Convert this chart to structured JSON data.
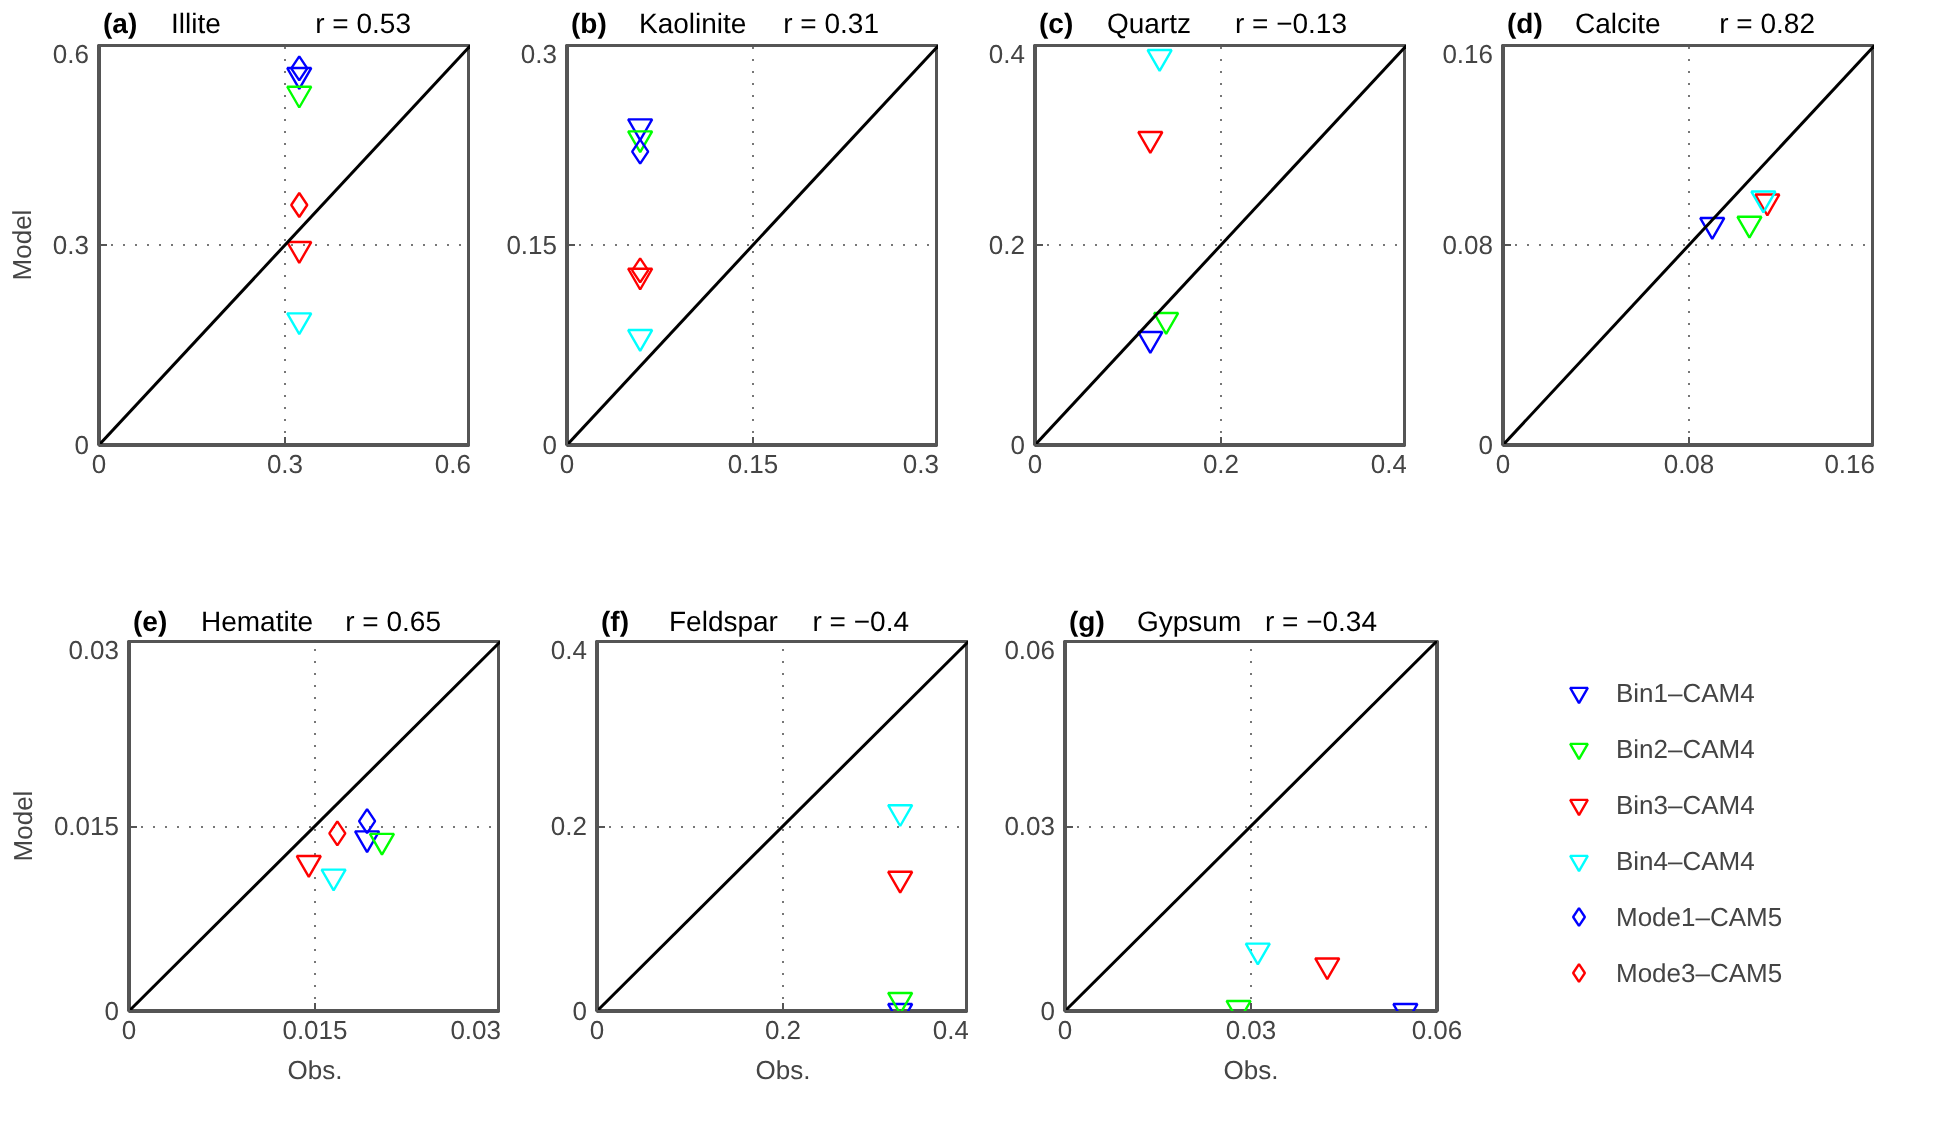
{
  "chart_data": [
    {
      "type": "scatter",
      "title": "Illite",
      "annotations": [
        "(a)",
        "r = 0.53"
      ],
      "ylabel": "Model",
      "xlim": [
        0,
        0.6
      ],
      "ylim": [
        0,
        0.6
      ],
      "xticks": [
        0,
        0.3,
        0.6
      ],
      "yticks": [
        0,
        0.3,
        0.6
      ],
      "grid": true,
      "series": [
        {
          "color": "#0000ff",
          "marker": "triangle",
          "x": [
            0.323
          ],
          "values": [
            0.555
          ]
        },
        {
          "color": "#00ff00",
          "marker": "triangle",
          "x": [
            0.323
          ],
          "values": [
            0.527
          ]
        },
        {
          "color": "#ff0000",
          "marker": "triangle",
          "x": [
            0.323
          ],
          "values": [
            0.294
          ]
        },
        {
          "color": "#00ffff",
          "marker": "triangle",
          "x": [
            0.323
          ],
          "values": [
            0.187
          ]
        },
        {
          "color": "#0000ff",
          "marker": "diamond",
          "x": [
            0.323
          ],
          "values": [
            0.565
          ]
        },
        {
          "color": "#ff0000",
          "marker": "diamond",
          "x": [
            0.323
          ],
          "values": [
            0.36
          ]
        },
        {
          "type": "line",
          "color": "#000000",
          "x": [
            0,
            0.6
          ],
          "values": [
            0,
            0.6
          ]
        }
      ]
    },
    {
      "type": "scatter",
      "title": "Kaolinite",
      "annotations": [
        "(b)",
        "r = 0.31"
      ],
      "xlim": [
        0,
        0.3
      ],
      "ylim": [
        0,
        0.3
      ],
      "xticks": [
        0,
        0.15,
        0.3
      ],
      "yticks": [
        0,
        0.15,
        0.3
      ],
      "grid": true,
      "series": [
        {
          "color": "#0000ff",
          "marker": "triangle",
          "x": [
            0.059
          ],
          "values": [
            0.239
          ]
        },
        {
          "color": "#00ff00",
          "marker": "triangle",
          "x": [
            0.059
          ],
          "values": [
            0.23
          ]
        },
        {
          "color": "#ff0000",
          "marker": "triangle",
          "x": [
            0.059
          ],
          "values": [
            0.127
          ]
        },
        {
          "color": "#00ffff",
          "marker": "triangle",
          "x": [
            0.059
          ],
          "values": [
            0.081
          ]
        },
        {
          "color": "#0000ff",
          "marker": "diamond",
          "x": [
            0.059
          ],
          "values": [
            0.22
          ]
        },
        {
          "color": "#ff0000",
          "marker": "diamond",
          "x": [
            0.059
          ],
          "values": [
            0.131
          ]
        },
        {
          "type": "line",
          "color": "#000000",
          "x": [
            0,
            0.3
          ],
          "values": [
            0,
            0.3
          ]
        }
      ]
    },
    {
      "type": "scatter",
      "title": "Quartz",
      "annotations": [
        "(c)",
        "r = −0.13"
      ],
      "xlim": [
        0,
        0.4
      ],
      "ylim": [
        0,
        0.4
      ],
      "xticks": [
        0,
        0.2,
        0.4
      ],
      "yticks": [
        0,
        0.2,
        0.4
      ],
      "grid": true,
      "series": [
        {
          "color": "#0000ff",
          "marker": "triangle",
          "x": [
            0.124
          ],
          "values": [
            0.106
          ]
        },
        {
          "color": "#00ff00",
          "marker": "triangle",
          "x": [
            0.141
          ],
          "values": [
            0.125
          ]
        },
        {
          "color": "#ff0000",
          "marker": "triangle",
          "x": [
            0.124
          ],
          "values": [
            0.306
          ]
        },
        {
          "color": "#00ffff",
          "marker": "triangle",
          "x": [
            0.134
          ],
          "values": [
            0.388
          ]
        },
        {
          "type": "line",
          "color": "#000000",
          "x": [
            0,
            0.4
          ],
          "values": [
            0,
            0.4
          ]
        }
      ]
    },
    {
      "type": "scatter",
      "title": "Calcite",
      "annotations": [
        "(d)",
        "r = 0.82"
      ],
      "xlim": [
        0,
        0.16
      ],
      "ylim": [
        0,
        0.16
      ],
      "xticks": [
        0,
        0.08,
        0.16
      ],
      "yticks": [
        0,
        0.08,
        0.16
      ],
      "grid": true,
      "series": [
        {
          "color": "#0000ff",
          "marker": "triangle",
          "x": [
            0.09
          ],
          "values": [
            0.088
          ]
        },
        {
          "color": "#00ff00",
          "marker": "triangle",
          "x": [
            0.106
          ],
          "values": [
            0.0885
          ]
        },
        {
          "color": "#ff0000",
          "marker": "triangle",
          "x": [
            0.1137
          ],
          "values": [
            0.0974
          ]
        },
        {
          "color": "#00ffff",
          "marker": "triangle",
          "x": [
            0.112
          ],
          "values": [
            0.0986
          ]
        },
        {
          "type": "line",
          "color": "#000000",
          "x": [
            0,
            0.16
          ],
          "values": [
            0,
            0.16
          ]
        }
      ]
    },
    {
      "type": "scatter",
      "title": "Hematite",
      "annotations": [
        "(e)",
        "r = 0.65"
      ],
      "xlabel": "Obs.",
      "ylabel": "Model",
      "xlim": [
        0,
        0.03
      ],
      "ylim": [
        0,
        0.03
      ],
      "xticks": [
        0,
        0.015,
        0.03
      ],
      "yticks": [
        0,
        0.015,
        0.03
      ],
      "grid": true,
      "series": [
        {
          "color": "#0000ff",
          "marker": "triangle",
          "x": [
            0.0192
          ],
          "values": [
            0.014
          ]
        },
        {
          "color": "#00ff00",
          "marker": "triangle",
          "x": [
            0.0204
          ],
          "values": [
            0.0138
          ]
        },
        {
          "color": "#ff0000",
          "marker": "triangle",
          "x": [
            0.0145
          ],
          "values": [
            0.012
          ]
        },
        {
          "color": "#00ffff",
          "marker": "triangle",
          "x": [
            0.0165
          ],
          "values": [
            0.0109
          ]
        },
        {
          "color": "#0000ff",
          "marker": "diamond",
          "x": [
            0.0192
          ],
          "values": [
            0.0154
          ]
        },
        {
          "color": "#ff0000",
          "marker": "diamond",
          "x": [
            0.0168
          ],
          "values": [
            0.0144
          ]
        },
        {
          "type": "line",
          "color": "#000000",
          "x": [
            0,
            0.03
          ],
          "values": [
            0,
            0.03
          ]
        }
      ]
    },
    {
      "type": "scatter",
      "title": "Feldspar",
      "annotations": [
        "(f)",
        "r = −0.4"
      ],
      "xlabel": "Obs.",
      "xlim": [
        0,
        0.4
      ],
      "ylim": [
        0,
        0.4
      ],
      "xticks": [
        0,
        0.2,
        0.4
      ],
      "yticks": [
        0,
        0.2,
        0.4
      ],
      "grid": true,
      "series": [
        {
          "color": "#0000ff",
          "marker": "triangle",
          "x": [
            0.326
          ],
          "values": [
            0
          ]
        },
        {
          "color": "#00ff00",
          "marker": "triangle",
          "x": [
            0.326
          ],
          "values": [
            0.012
          ]
        },
        {
          "color": "#ff0000",
          "marker": "triangle",
          "x": [
            0.326
          ],
          "values": [
            0.143
          ]
        },
        {
          "color": "#00ffff",
          "marker": "triangle",
          "x": [
            0.326
          ],
          "values": [
            0.215
          ]
        },
        {
          "type": "line",
          "color": "#000000",
          "x": [
            0,
            0.4
          ],
          "values": [
            0,
            0.4
          ]
        }
      ]
    },
    {
      "type": "scatter",
      "title": "Gypsum",
      "annotations": [
        "(g)",
        "r = −0.34"
      ],
      "xlabel": "Obs.",
      "xlim": [
        0,
        0.06
      ],
      "ylim": [
        0,
        0.06
      ],
      "xticks": [
        0,
        0.03,
        0.06
      ],
      "yticks": [
        0,
        0.03,
        0.06
      ],
      "grid": true,
      "legend": "right",
      "series": [
        {
          "name": "Bin1–CAM4",
          "color": "#0000ff",
          "marker": "triangle",
          "x": [
            0.0549
          ],
          "values": [
            0
          ]
        },
        {
          "name": "Bin2–CAM4",
          "color": "#00ff00",
          "marker": "triangle",
          "x": [
            0.028
          ],
          "values": [
            0.0005
          ]
        },
        {
          "name": "Bin3–CAM4",
          "color": "#ff0000",
          "marker": "triangle",
          "x": [
            0.0423
          ],
          "values": [
            0.0074
          ]
        },
        {
          "name": "Bin4–CAM4",
          "color": "#00ffff",
          "marker": "triangle",
          "x": [
            0.0311
          ],
          "values": [
            0.0098
          ]
        },
        {
          "name": "Mode1–CAM5",
          "color": "#0000ff",
          "marker": "diamond",
          "x": [
            null
          ],
          "values": [
            null
          ]
        },
        {
          "name": "Mode3–CAM5",
          "color": "#ff0000",
          "marker": "diamond",
          "x": [
            null
          ],
          "values": [
            null
          ]
        },
        {
          "type": "line",
          "color": "#000000",
          "x": [
            0,
            0.06
          ],
          "values": [
            0,
            0.06
          ]
        }
      ]
    }
  ]
}
